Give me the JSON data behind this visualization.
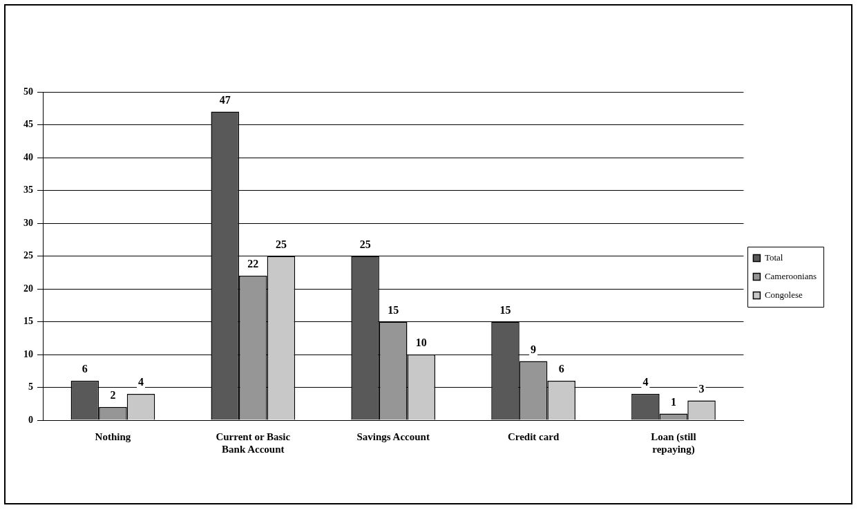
{
  "chart_data": {
    "type": "bar",
    "categories": [
      "Nothing",
      "Current or Basic Bank Account",
      "Savings Account",
      "Credit card",
      "Loan (still repaying)"
    ],
    "series": [
      {
        "name": "Total",
        "color": "#595959",
        "values": [
          6,
          47,
          25,
          15,
          4
        ]
      },
      {
        "name": "Cameroonians",
        "color": "#969696",
        "values": [
          2,
          22,
          15,
          9,
          1
        ]
      },
      {
        "name": "Congolese",
        "color": "#c8c8c8",
        "values": [
          4,
          25,
          10,
          6,
          3
        ]
      }
    ],
    "ylim": [
      0,
      50
    ],
    "yticks": [
      0,
      5,
      10,
      15,
      20,
      25,
      30,
      35,
      40,
      45,
      50
    ],
    "grid": "y",
    "legend": "right",
    "data_labels": true
  }
}
